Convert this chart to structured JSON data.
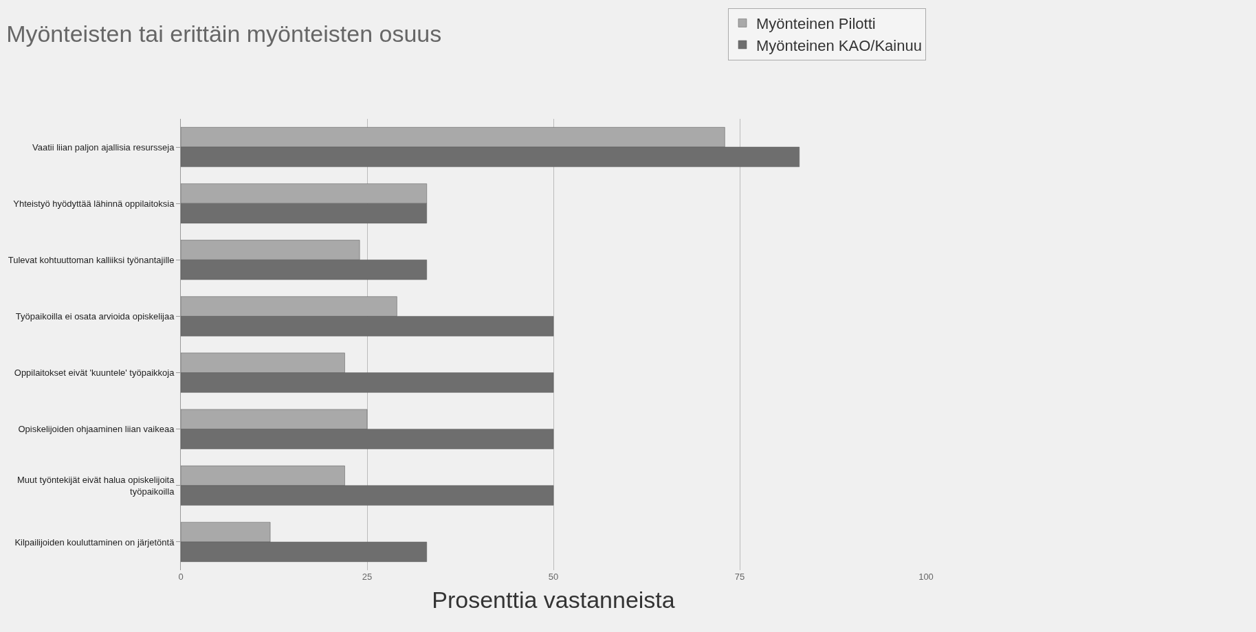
{
  "chart_data": {
    "type": "bar",
    "orientation": "horizontal",
    "title": "Myönteisten tai erittäin myönteisten osuus",
    "xlabel": "Prosenttia vastanneista",
    "categories": [
      "Vaatii liian paljon ajallisia resursseja",
      "Yhteistyö hyödyttää lähinnä oppilaitoksia",
      "Tulevat kohtuuttoman kalliiksi työnantajille",
      "Työpaikoilla ei osata arvioida opiskelijaa",
      "Oppilaitokset eivät 'kuuntele' työpaikkoja",
      "Opiskelijoiden ohjaaminen liian vaikeaa",
      "Muut työntekijät eivät halua opiskelijoita työpaikoilla",
      "Kilpailijoiden kouluttaminen on järjetöntä"
    ],
    "series": [
      {
        "name": "Myönteinen Pilotti",
        "color": "#a9a9a9",
        "values": [
          73,
          33,
          24,
          29,
          22,
          25,
          22,
          12
        ]
      },
      {
        "name": "Myönteinen KAO/Kainuu",
        "color": "#6e6e6e",
        "values": [
          83,
          33,
          33,
          50,
          50,
          50,
          50,
          33
        ]
      }
    ],
    "xlim": [
      0,
      100
    ],
    "xticks": [
      0,
      25,
      50,
      75,
      100
    ],
    "grid": "x",
    "legend": "top right"
  }
}
